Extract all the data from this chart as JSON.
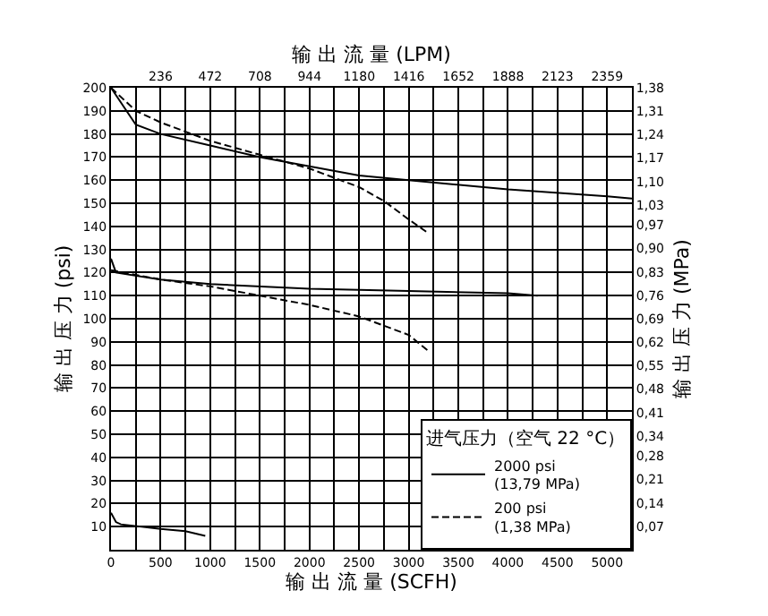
{
  "chart_data": {
    "type": "line",
    "xlabel": "输 出 流 量 (SCFH)",
    "x2label": "输 出 流 量 (LPM)",
    "ylabel": "输 出 压 力 (psi)",
    "y2label": "输 出 压 力 (MPa)",
    "legend_title": "进气压力（空气 22 °C）",
    "xlim": [
      0,
      5250
    ],
    "xticks": [
      0,
      500,
      1000,
      1500,
      2000,
      2500,
      3000,
      3500,
      4000,
      4500,
      5000
    ],
    "x2lim": [
      0,
      2477
    ],
    "x2ticks": [
      236,
      472,
      708,
      944,
      1180,
      1416,
      1652,
      1888,
      2123,
      2359
    ],
    "ylim": [
      0,
      200
    ],
    "yticks": [
      10,
      20,
      30,
      40,
      50,
      60,
      70,
      80,
      90,
      100,
      110,
      120,
      130,
      140,
      150,
      160,
      170,
      180,
      190,
      200
    ],
    "y2lim": [
      0,
      1.38
    ],
    "y2ticks": [
      {
        "value": 0.07,
        "label": "0,07"
      },
      {
        "value": 0.14,
        "label": "0,14"
      },
      {
        "value": 0.21,
        "label": "0,21"
      },
      {
        "value": 0.28,
        "label": "0,28"
      },
      {
        "value": 0.34,
        "label": "0,34"
      },
      {
        "value": 0.41,
        "label": "0,41"
      },
      {
        "value": 0.48,
        "label": "0,48"
      },
      {
        "value": 0.55,
        "label": "0,55"
      },
      {
        "value": 0.62,
        "label": "0,62"
      },
      {
        "value": 0.69,
        "label": "0,69"
      },
      {
        "value": 0.76,
        "label": "0,76"
      },
      {
        "value": 0.83,
        "label": "0,83"
      },
      {
        "value": 0.9,
        "label": "0,90"
      },
      {
        "value": 0.97,
        "label": "0,97"
      },
      {
        "value": 1.03,
        "label": "1,03"
      },
      {
        "value": 1.1,
        "label": "1,10"
      },
      {
        "value": 1.17,
        "label": "1,17"
      },
      {
        "value": 1.24,
        "label": "1,24"
      },
      {
        "value": 1.31,
        "label": "1,31"
      },
      {
        "value": 1.38,
        "label": "1,38"
      }
    ],
    "grid": true,
    "legend": "bottom right",
    "marker": "none",
    "series": [
      {
        "name": "2000 psi\n(13,79 MPa)",
        "color": "#000000",
        "line_style": "solid",
        "x": [
          0,
          250,
          500,
          1000,
          1500,
          2000,
          2500,
          3000,
          4000,
          5000,
          5250
        ],
        "values": [
          200,
          184,
          180,
          175,
          170,
          166,
          162,
          160,
          156,
          153,
          152
        ]
      },
      {
        "name": "200 psi\n(1,38 MPa)",
        "color": "#000000",
        "line_style": "dashed",
        "x": [
          0,
          250,
          500,
          1000,
          1500,
          2000,
          2500,
          2750,
          3000,
          3200
        ],
        "values": [
          200,
          190,
          185,
          177,
          171,
          165,
          157,
          151,
          143,
          137
        ]
      },
      {
        "color": "#000000",
        "line_style": "solid",
        "x": [
          0,
          50,
          500,
          1000,
          2000,
          3000,
          4000,
          4300
        ],
        "values": [
          126,
          120,
          117,
          115,
          113,
          112,
          111,
          110
        ]
      },
      {
        "color": "#000000",
        "line_style": "dashed",
        "x": [
          0,
          500,
          1000,
          1500,
          2000,
          2500,
          2750,
          3000,
          3200
        ],
        "values": [
          121,
          117,
          114,
          110,
          106,
          101,
          97,
          93,
          86
        ]
      },
      {
        "color": "#000000",
        "line_style": "solid",
        "x": [
          0,
          50,
          100,
          500,
          750,
          950
        ],
        "values": [
          16,
          12,
          11,
          9,
          8,
          6
        ]
      }
    ]
  }
}
